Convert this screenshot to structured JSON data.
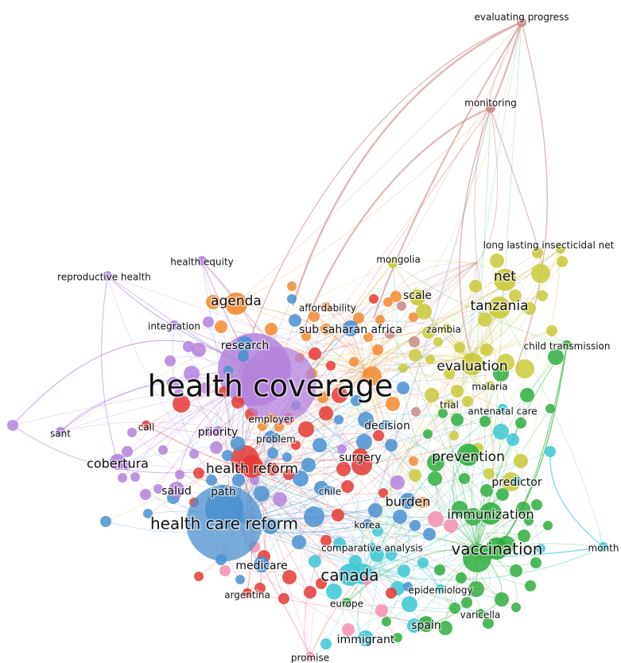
{
  "nodes": [
    {
      "label": "evaluating progress",
      "color": "#c98a86",
      "size": "s",
      "label_pos": "t"
    },
    {
      "label": "monitoring",
      "color": "#c98a86",
      "size": "s",
      "label_pos": "t"
    },
    {
      "label": "long lasting insecticidal net",
      "color": "#c9c93a",
      "size": "s",
      "label_pos": "t"
    },
    {
      "label": "mongolia",
      "color": "#c9c93a",
      "size": "s",
      "label_pos": "t"
    },
    {
      "label": "health equity",
      "color": "#b382dc",
      "size": "s",
      "label_pos": "t"
    },
    {
      "label": "reproductive health",
      "color": "#b382dc",
      "size": "s",
      "label_pos": "t"
    },
    {
      "label": "net",
      "color": "#c9c93a",
      "size": "l",
      "label_pos": "t"
    },
    {
      "label": "agenda",
      "color": "#f28a30",
      "size": "l",
      "label_pos": "t"
    },
    {
      "label": "scale",
      "color": "#c9c93a",
      "size": "m",
      "label_pos": "t"
    },
    {
      "label": "affordability",
      "color": "#f28a30",
      "size": "s",
      "label_pos": "t"
    },
    {
      "label": "tanzania",
      "color": "#c9c93a",
      "size": "l",
      "label_pos": "t"
    },
    {
      "label": "integration",
      "color": "#b382dc",
      "size": "s",
      "label_pos": "t"
    },
    {
      "label": "sub saharan africa",
      "color": "#4a90d0",
      "size": "m",
      "label_pos": "t"
    },
    {
      "label": "zambia",
      "color": "#c9c93a",
      "size": "s",
      "label_pos": "t"
    },
    {
      "label": "research",
      "color": "#4a90d0",
      "size": "m",
      "label_pos": "t"
    },
    {
      "label": "child transmission",
      "color": "#2fae3f",
      "size": "s",
      "label_pos": "t"
    },
    {
      "label": "evaluation",
      "color": "#c9c93a",
      "size": "l",
      "label_pos": "t"
    },
    {
      "label": "health coverage",
      "color": "#b382dc",
      "size": "xl",
      "label_pos": "c"
    },
    {
      "label": "malaria",
      "color": "#c9c93a",
      "size": "s",
      "label_pos": "t"
    },
    {
      "label": "trial",
      "color": "#c9c93a",
      "size": "s",
      "label_pos": "t"
    },
    {
      "label": "antenatal care",
      "color": "#3cc7d4",
      "size": "s",
      "label_pos": "t"
    },
    {
      "label": "employer",
      "color": "#f28a30",
      "size": "s",
      "label_pos": "t"
    },
    {
      "label": "sant",
      "color": "#b382dc",
      "size": "s",
      "label_pos": "t"
    },
    {
      "label": "call",
      "color": "#e53935",
      "size": "s",
      "label_pos": "t"
    },
    {
      "label": "decision",
      "color": "#4a90d0",
      "size": "s",
      "label_pos": "t"
    },
    {
      "label": "priority",
      "color": "#b382dc",
      "size": "s",
      "label_pos": "t"
    },
    {
      "label": "problem",
      "color": "#4a90d0",
      "size": "s",
      "label_pos": "t"
    },
    {
      "label": "surgery",
      "color": "#e53935",
      "size": "m",
      "label_pos": "t"
    },
    {
      "label": "prevention",
      "color": "#2fae3f",
      "size": "l",
      "label_pos": "t"
    },
    {
      "label": "cobertura",
      "color": "#b382dc",
      "size": "m",
      "label_pos": "t"
    },
    {
      "label": "health reform",
      "color": "#e53935",
      "size": "l",
      "label_pos": "c"
    },
    {
      "label": "predictor",
      "color": "#3cc7d4",
      "size": "s",
      "label_pos": "t"
    },
    {
      "label": "salud",
      "color": "#b382dc",
      "size": "m",
      "label_pos": "t"
    },
    {
      "label": "path",
      "color": "#4a90d0",
      "size": "s",
      "label_pos": "t"
    },
    {
      "label": "chile",
      "color": "#4a90d0",
      "size": "s",
      "label_pos": "t"
    },
    {
      "label": "burden",
      "color": "#4a90d0",
      "size": "m",
      "label_pos": "t"
    },
    {
      "label": "immunization",
      "color": "#2fae3f",
      "size": "l",
      "label_pos": "t"
    },
    {
      "label": "health care reform",
      "color": "#4a90d0",
      "size": "xl",
      "label_pos": "c"
    },
    {
      "label": "korea",
      "color": "#4a90d0",
      "size": "s",
      "label_pos": "t"
    },
    {
      "label": "month",
      "color": "#3cc7d4",
      "size": "s",
      "label_pos": "t"
    },
    {
      "label": "comparative analysis",
      "color": "#3cc7d4",
      "size": "s",
      "label_pos": "t"
    },
    {
      "label": "vaccination",
      "color": "#2fae3f",
      "size": "l",
      "label_pos": "c"
    },
    {
      "label": "medicare",
      "color": "#4a90d0",
      "size": "m",
      "label_pos": "t"
    },
    {
      "label": "canada",
      "color": "#3cc7d4",
      "size": "l",
      "label_pos": "c"
    },
    {
      "label": "epidemiology",
      "color": "#3cc7d4",
      "size": "s",
      "label_pos": "t"
    },
    {
      "label": "argentina",
      "color": "#e53935",
      "size": "s",
      "label_pos": "t"
    },
    {
      "label": "europe",
      "color": "#2fae3f",
      "size": "s",
      "label_pos": "t"
    },
    {
      "label": "varicella",
      "color": "#2fae3f",
      "size": "s",
      "label_pos": "t"
    },
    {
      "label": "spain",
      "color": "#2fae3f",
      "size": "m",
      "label_pos": "t"
    },
    {
      "label": "immigrant",
      "color": "#3cc7d4",
      "size": "m",
      "label_pos": "t"
    },
    {
      "label": "promise",
      "color": "#f48fb1",
      "size": "s",
      "label_pos": "t"
    }
  ],
  "edge_colors": {
    "purple": "#b382dc",
    "red": "#e53935",
    "blue": "#4a90d0",
    "green": "#2fae3f",
    "yellow": "#c9c93a",
    "orange": "#f28a30",
    "cyan": "#3cc7d4",
    "pink": "#f48fb1",
    "brown": "#c98a86"
  }
}
